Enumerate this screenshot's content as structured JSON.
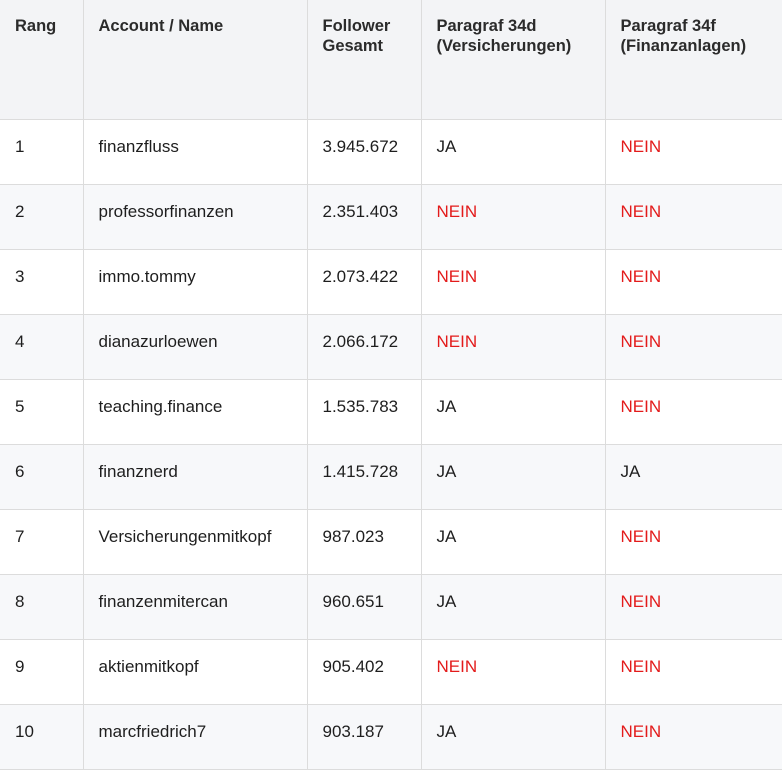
{
  "table": {
    "headers": [
      "Rang",
      "Account / Name",
      "Follower Gesamt",
      "Paragraf 34d (Versicherungen)",
      "Paragraf 34f (Finanzanlagen)"
    ],
    "rows": [
      {
        "rang": "1",
        "name": "finanzfluss",
        "followers": "3.945.672",
        "p34d": "JA",
        "p34f": "NEIN"
      },
      {
        "rang": "2",
        "name": "professorfinanzen",
        "followers": "2.351.403",
        "p34d": "NEIN",
        "p34f": "NEIN"
      },
      {
        "rang": "3",
        "name": "immo.tommy",
        "followers": "2.073.422",
        "p34d": "NEIN",
        "p34f": "NEIN"
      },
      {
        "rang": "4",
        "name": "dianazurloewen",
        "followers": "2.066.172",
        "p34d": "NEIN",
        "p34f": "NEIN"
      },
      {
        "rang": "5",
        "name": "teaching.finance",
        "followers": "1.535.783",
        "p34d": "JA",
        "p34f": "NEIN"
      },
      {
        "rang": "6",
        "name": "finanznerd",
        "followers": "1.415.728",
        "p34d": "JA",
        "p34f": "JA"
      },
      {
        "rang": "7",
        "name": "Versicherungenmitkopf",
        "followers": "987.023",
        "p34d": "JA",
        "p34f": "NEIN"
      },
      {
        "rang": "8",
        "name": "finanzenmitercan",
        "followers": "960.651",
        "p34d": "JA",
        "p34f": "NEIN"
      },
      {
        "rang": "9",
        "name": "aktienmitkopf",
        "followers": "905.402",
        "p34d": "NEIN",
        "p34f": "NEIN"
      },
      {
        "rang": "10",
        "name": "marcfriedrich7",
        "followers": "903.187",
        "p34d": "JA",
        "p34f": "NEIN"
      }
    ],
    "colors": {
      "no": "#e31b1b",
      "header_bg": "#f3f4f6",
      "row_alt_bg": "#f7f8fa"
    }
  }
}
